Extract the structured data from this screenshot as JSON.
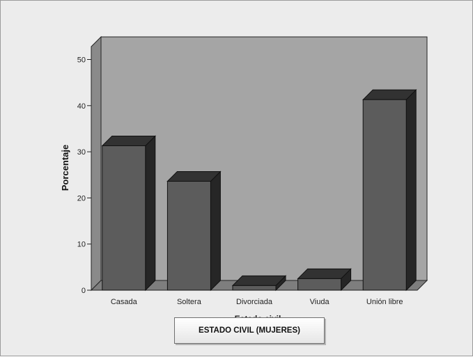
{
  "chart_data": {
    "type": "bar",
    "categories": [
      "Casada",
      "Soltera",
      "Divorciada",
      "Viuda",
      "Unión libre"
    ],
    "values": [
      31.3,
      23.6,
      1.0,
      2.5,
      41.3
    ],
    "ylabel": "Porcentaje",
    "xlabel": "Estado civil",
    "ylim": [
      0,
      52
    ],
    "yticks": [
      0,
      10,
      20,
      30,
      40,
      50
    ],
    "grid": false,
    "style": "3d",
    "colors": {
      "bar_front": "#5c5c5c",
      "bar_top": "#323232",
      "bar_side": "#262626",
      "wall": "#a5a5a5",
      "floor": "#7e7e7e"
    }
  },
  "caption": "ESTADO CIVIL (MUJERES)"
}
